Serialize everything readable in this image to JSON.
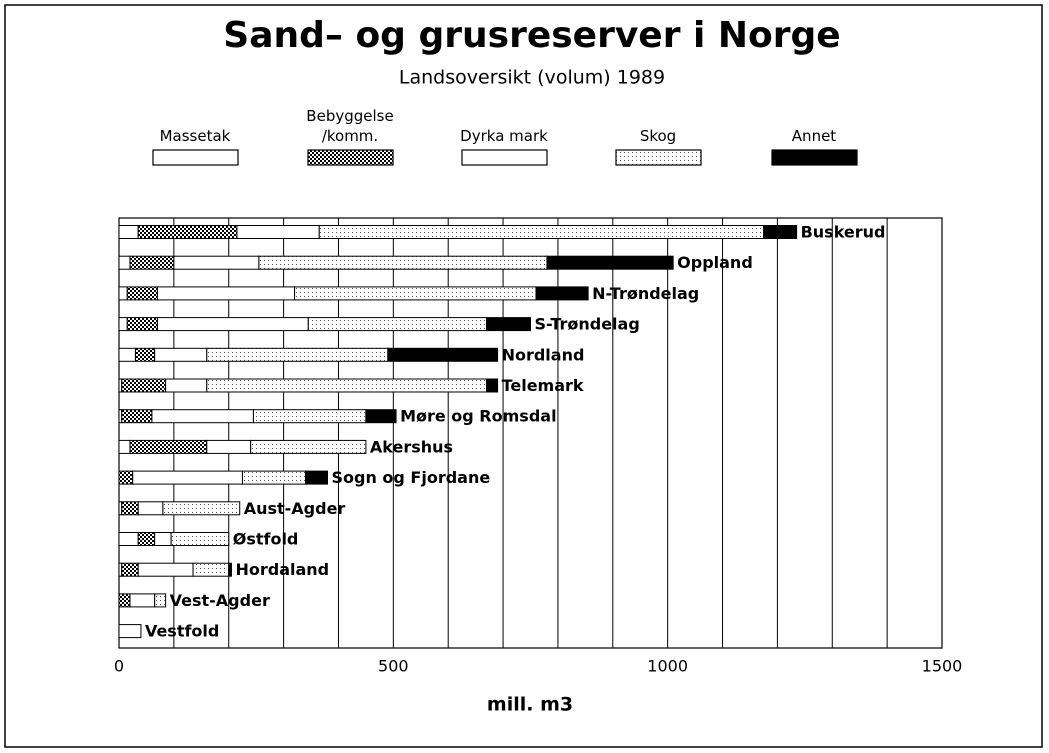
{
  "chart_data": {
    "type": "stacked_barh",
    "title": "Sand– og grusreserver i Norge",
    "subtitle": "Landsoversikt (volum) 1989",
    "xlabel": "mill. m3",
    "categories": [
      "Buskerud",
      "Oppland",
      "N-Trøndelag",
      "S-Trøndelag",
      "Nordland",
      "Telemark",
      "Møre og Romsdal",
      "Akershus",
      "Sogn og Fjordane",
      "Aust-Agder",
      "Østfold",
      "Hordaland",
      "Vest-Agder",
      "Vestfold"
    ],
    "series": [
      {
        "name": "Massetak",
        "color": "#ffffff",
        "pattern": "none",
        "values": [
          35,
          20,
          15,
          15,
          30,
          5,
          5,
          20,
          0,
          5,
          35,
          5,
          0,
          40
        ]
      },
      {
        "name": "Bebyggelse /komm.",
        "color": "#888888",
        "pattern": "checker",
        "values": [
          180,
          80,
          55,
          55,
          35,
          80,
          55,
          140,
          25,
          30,
          30,
          30,
          20,
          0
        ]
      },
      {
        "name": "Dyrka mark",
        "color": "#ffffff",
        "pattern": "none",
        "values": [
          150,
          155,
          250,
          275,
          95,
          75,
          185,
          80,
          200,
          45,
          30,
          100,
          45,
          0
        ]
      },
      {
        "name": "Skog",
        "color": "#e6e6e6",
        "pattern": "dots",
        "values": [
          810,
          525,
          440,
          325,
          330,
          510,
          205,
          210,
          115,
          140,
          105,
          65,
          20,
          0
        ]
      },
      {
        "name": "Annet",
        "color": "#000000",
        "pattern": "none",
        "values": [
          60,
          230,
          95,
          80,
          200,
          20,
          55,
          0,
          40,
          0,
          0,
          5,
          0,
          0
        ]
      }
    ],
    "xlim": [
      0,
      1500
    ],
    "xticks": [
      0,
      500,
      1000,
      1500
    ],
    "xgrid": [
      100,
      200,
      300,
      400,
      500,
      600,
      700,
      800,
      900,
      1000,
      1100,
      1200,
      1300,
      1400,
      1500
    ]
  }
}
